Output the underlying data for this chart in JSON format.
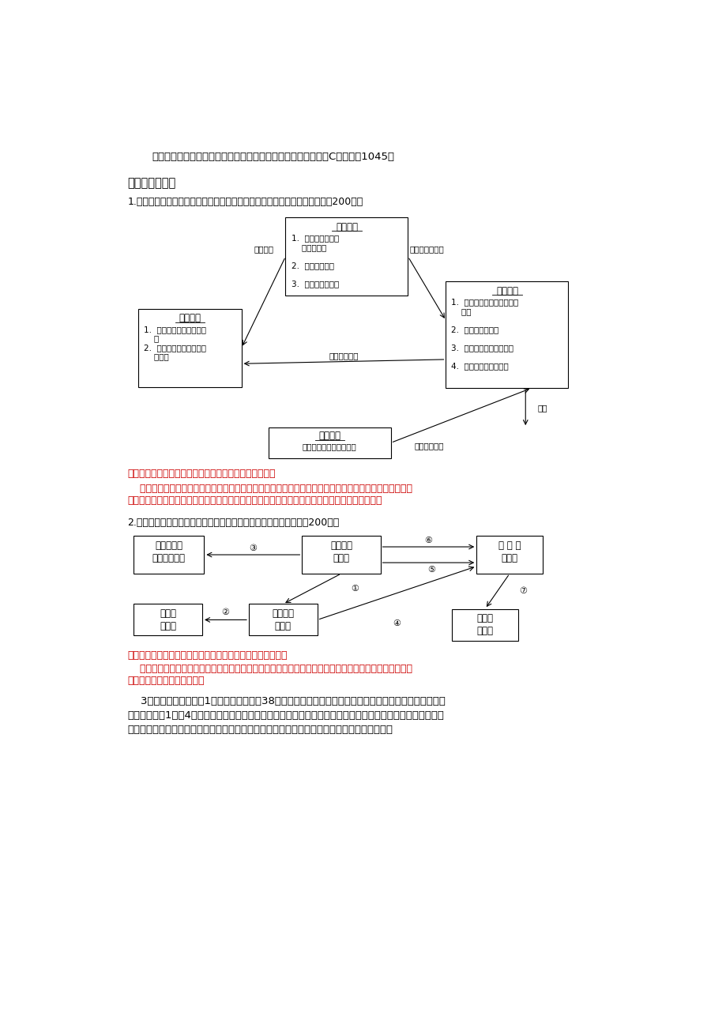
{
  "title": "国家开放大学电大本科《会计制度设计》期末试题题库及答案（C试卷号：1045）",
  "section1": "一、分析说明题",
  "q1": "1.请指出下列流程是什么业务的控制程序，是否合理，为什么？（答题不少于200字）",
  "q2": "2.请指出下列的流程图各属于什么销售方式？为什么？（答题不少于200字）",
  "ans1_short": "答：该流程图是货币资金收入的控制程序图，比较合理。",
  "ans1_line1": "    因为该图体现了较为合理的货币资金收入的内部控制制度，货币资金的授权批准制度和货币资金的岗位分",
  "ans1_line2": "工控制制度；该程序的设计以便于各职能部门相互协调，共同遵守，保证货币资金的安全、完整。",
  "ans2_short": "答：此流程是托运货制下的销售业务手续和凭证流转程序图。",
  "ans2_line1": "    因为此图说明供货单位的销售人员长驻在采购货物方，采购货物方不直接和供货单位联系，而是由驻厂员",
  "ans2_line2": "和供货单位联系，请求发货。",
  "q3_line1": "    3．我国已经建立了由1项基本会计准则、38项具体会计准则与有关的会计准则应用指南以及《企业会计准",
  "q3_line2": "则解释》（第1至第4号），这表明我国形成了完整的以会计准则为主的会计标准体系，企业日常会计活动应该严",
  "q3_line3": "格遵守会计准则的规定。会计准则就是企业会计制度。你认同这种说法吗？试分析并说明理由。",
  "bg_color": "#ffffff",
  "text_color": "#000000",
  "red_color": "#cc0000",
  "box_color": "#ffffff",
  "box_edge": "#000000"
}
